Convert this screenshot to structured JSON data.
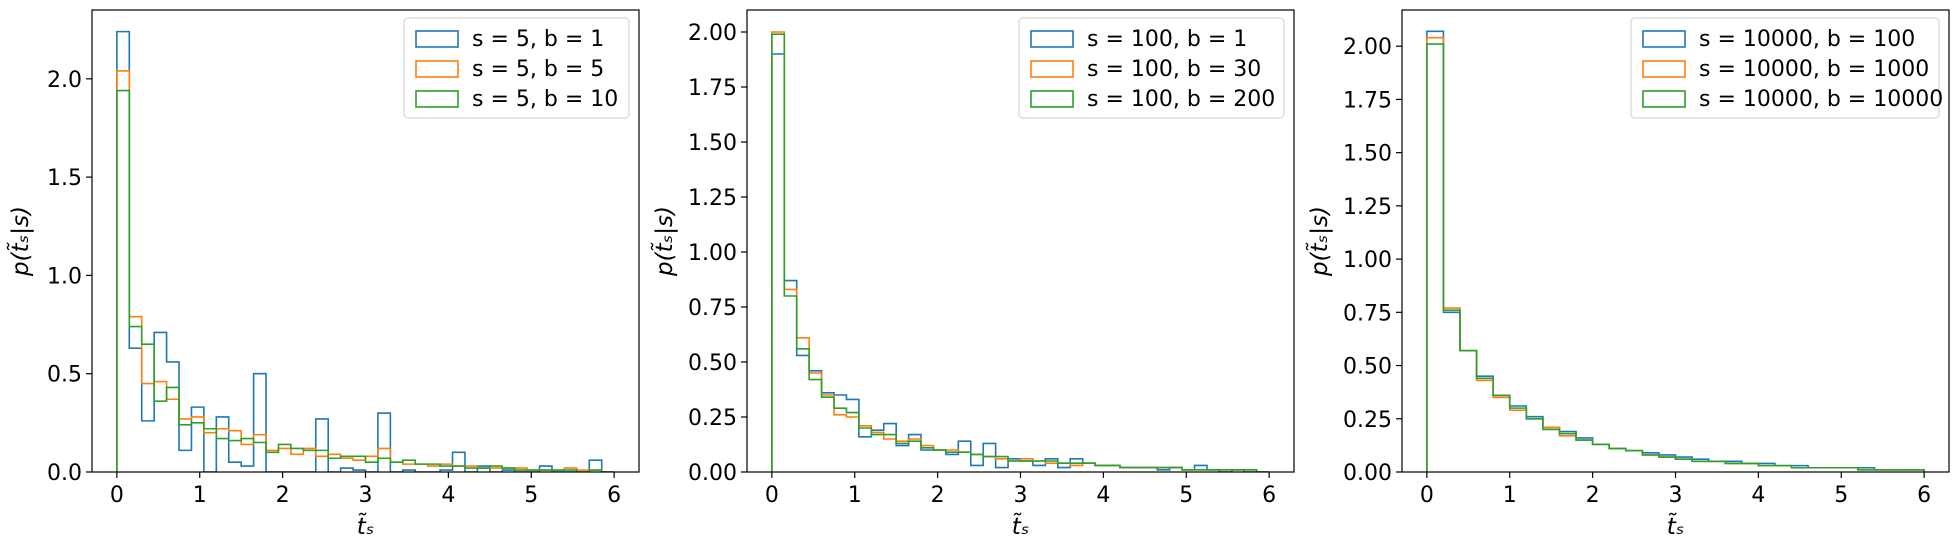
{
  "colors": {
    "series": [
      "#1f77b4",
      "#ff7f0e",
      "#2ca02c"
    ]
  },
  "chart_data": [
    {
      "type": "histogram-step",
      "xlabel": "t̃ₛ",
      "ylabel": "p(t̃ₛ|s)",
      "xlim": [
        -0.3,
        6.3
      ],
      "ylim": [
        0,
        2.35
      ],
      "xticks": [
        0,
        1,
        2,
        3,
        4,
        5,
        6
      ],
      "yticks": [
        0.0,
        0.5,
        1.0,
        1.5,
        2.0
      ],
      "ytick_labels": [
        "0.0",
        "0.5",
        "1.0",
        "1.5",
        "2.0"
      ],
      "bin_edges": [
        0,
        0.15,
        0.3,
        0.45,
        0.6,
        0.75,
        0.9,
        1.05,
        1.2,
        1.35,
        1.5,
        1.65,
        1.8,
        1.95,
        2.1,
        2.25,
        2.4,
        2.55,
        2.7,
        2.85,
        3.0,
        3.15,
        3.3,
        3.45,
        3.6,
        3.75,
        3.9,
        4.05,
        4.2,
        4.35,
        4.5,
        4.65,
        4.8,
        4.95,
        5.1,
        5.25,
        5.4,
        5.55,
        5.7,
        5.85,
        6.0
      ],
      "legend_position": "upper right",
      "series": [
        {
          "name": "s = 5, b = 1",
          "values": [
            2.24,
            0.63,
            0.26,
            0.71,
            0.56,
            0.11,
            0.33,
            0.0,
            0.28,
            0.05,
            0.03,
            0.5,
            0.0,
            0.0,
            0.0,
            0.0,
            0.27,
            0.0,
            0.02,
            0.01,
            0.0,
            0.3,
            0.0,
            0.01,
            0.0,
            0.0,
            0.01,
            0.1,
            0.0,
            0.03,
            0.0,
            0.01,
            0.0,
            0.0,
            0.03,
            0.0,
            0.0,
            0.0,
            0.06,
            0.0
          ]
        },
        {
          "name": "s = 5, b = 5",
          "values": [
            2.04,
            0.79,
            0.45,
            0.46,
            0.37,
            0.27,
            0.28,
            0.2,
            0.22,
            0.21,
            0.14,
            0.19,
            0.11,
            0.12,
            0.09,
            0.12,
            0.08,
            0.09,
            0.07,
            0.06,
            0.08,
            0.12,
            0.05,
            0.04,
            0.04,
            0.03,
            0.04,
            0.03,
            0.03,
            0.02,
            0.02,
            0.02,
            0.02,
            0.01,
            0.01,
            0.01,
            0.02,
            0.01,
            0.01,
            0.0
          ]
        },
        {
          "name": "s = 5, b = 10",
          "values": [
            1.94,
            0.74,
            0.65,
            0.36,
            0.43,
            0.24,
            0.25,
            0.22,
            0.17,
            0.16,
            0.17,
            0.15,
            0.1,
            0.14,
            0.12,
            0.11,
            0.11,
            0.07,
            0.08,
            0.08,
            0.05,
            0.07,
            0.05,
            0.06,
            0.04,
            0.04,
            0.03,
            0.03,
            0.02,
            0.02,
            0.03,
            0.02,
            0.01,
            0.01,
            0.01,
            0.01,
            0.01,
            0.0,
            0.01,
            0.0
          ]
        }
      ]
    },
    {
      "type": "histogram-step",
      "xlabel": "t̃ₛ",
      "ylabel": "p(t̃ₛ|s)",
      "xlim": [
        -0.3,
        6.3
      ],
      "ylim": [
        0,
        2.1
      ],
      "xticks": [
        0,
        1,
        2,
        3,
        4,
        5,
        6
      ],
      "yticks": [
        0.0,
        0.25,
        0.5,
        0.75,
        1.0,
        1.25,
        1.5,
        1.75,
        2.0
      ],
      "ytick_labels": [
        "0.00",
        "0.25",
        "0.50",
        "0.75",
        "1.00",
        "1.25",
        "1.50",
        "1.75",
        "2.00"
      ],
      "bin_edges": [
        0,
        0.15,
        0.3,
        0.45,
        0.6,
        0.75,
        0.9,
        1.05,
        1.2,
        1.35,
        1.5,
        1.65,
        1.8,
        1.95,
        2.1,
        2.25,
        2.4,
        2.55,
        2.7,
        2.85,
        3.0,
        3.15,
        3.3,
        3.45,
        3.6,
        3.75,
        3.9,
        4.05,
        4.2,
        4.35,
        4.5,
        4.65,
        4.8,
        4.95,
        5.1,
        5.25,
        5.4,
        5.55,
        5.7,
        5.85,
        6.0
      ],
      "legend_position": "upper right",
      "series": [
        {
          "name": "s = 100, b = 1",
          "values": [
            1.9,
            0.87,
            0.53,
            0.46,
            0.36,
            0.35,
            0.33,
            0.16,
            0.19,
            0.22,
            0.12,
            0.17,
            0.1,
            0.1,
            0.08,
            0.14,
            0.03,
            0.13,
            0.02,
            0.06,
            0.05,
            0.03,
            0.06,
            0.02,
            0.06,
            0.04,
            0.03,
            0.03,
            0.02,
            0.02,
            0.02,
            0.01,
            0.02,
            0.01,
            0.03,
            0.01,
            0.0,
            0.01,
            0.0,
            0.0
          ]
        },
        {
          "name": "s = 100, b = 30",
          "values": [
            2.0,
            0.83,
            0.61,
            0.45,
            0.35,
            0.26,
            0.25,
            0.21,
            0.18,
            0.15,
            0.14,
            0.15,
            0.12,
            0.1,
            0.1,
            0.09,
            0.08,
            0.07,
            0.06,
            0.05,
            0.06,
            0.05,
            0.04,
            0.04,
            0.03,
            0.04,
            0.03,
            0.03,
            0.02,
            0.02,
            0.02,
            0.02,
            0.02,
            0.01,
            0.01,
            0.01,
            0.01,
            0.01,
            0.01,
            0.0
          ]
        },
        {
          "name": "s = 100, b = 200",
          "values": [
            1.99,
            0.8,
            0.56,
            0.42,
            0.34,
            0.29,
            0.27,
            0.2,
            0.17,
            0.17,
            0.13,
            0.14,
            0.11,
            0.1,
            0.09,
            0.09,
            0.08,
            0.07,
            0.07,
            0.05,
            0.05,
            0.05,
            0.05,
            0.04,
            0.04,
            0.04,
            0.03,
            0.03,
            0.02,
            0.02,
            0.02,
            0.02,
            0.02,
            0.01,
            0.01,
            0.01,
            0.01,
            0.01,
            0.01,
            0.0
          ]
        }
      ]
    },
    {
      "type": "histogram-step",
      "xlabel": "t̃ₛ",
      "ylabel": "p(t̃ₛ|s)",
      "xlim": [
        -0.3,
        6.3
      ],
      "ylim": [
        0,
        2.17
      ],
      "xticks": [
        0,
        1,
        2,
        3,
        4,
        5,
        6
      ],
      "yticks": [
        0.0,
        0.25,
        0.5,
        0.75,
        1.0,
        1.25,
        1.5,
        1.75,
        2.0
      ],
      "ytick_labels": [
        "0.00",
        "0.25",
        "0.50",
        "0.75",
        "1.00",
        "1.25",
        "1.50",
        "1.75",
        "2.00"
      ],
      "bin_edges": [
        0,
        0.2,
        0.4,
        0.6,
        0.8,
        1.0,
        1.2,
        1.4,
        1.6,
        1.8,
        2.0,
        2.2,
        2.4,
        2.6,
        2.8,
        3.0,
        3.2,
        3.4,
        3.6,
        3.8,
        4.0,
        4.2,
        4.4,
        4.6,
        4.8,
        5.0,
        5.2,
        5.4,
        5.6,
        5.8,
        6.0
      ],
      "legend_position": "upper right",
      "series": [
        {
          "name": "s = 10000, b = 100",
          "values": [
            2.07,
            0.75,
            0.57,
            0.45,
            0.36,
            0.31,
            0.26,
            0.21,
            0.19,
            0.16,
            0.13,
            0.11,
            0.1,
            0.09,
            0.08,
            0.07,
            0.06,
            0.05,
            0.05,
            0.04,
            0.04,
            0.03,
            0.03,
            0.02,
            0.02,
            0.02,
            0.02,
            0.01,
            0.01,
            0.01
          ]
        },
        {
          "name": "s = 10000, b = 1000",
          "values": [
            2.04,
            0.77,
            0.57,
            0.43,
            0.35,
            0.29,
            0.25,
            0.21,
            0.17,
            0.15,
            0.13,
            0.11,
            0.1,
            0.08,
            0.07,
            0.06,
            0.05,
            0.05,
            0.04,
            0.04,
            0.03,
            0.03,
            0.02,
            0.02,
            0.02,
            0.02,
            0.01,
            0.01,
            0.01,
            0.01
          ]
        },
        {
          "name": "s = 10000, b = 10000",
          "values": [
            2.01,
            0.76,
            0.57,
            0.44,
            0.36,
            0.3,
            0.25,
            0.2,
            0.18,
            0.15,
            0.13,
            0.11,
            0.1,
            0.08,
            0.07,
            0.06,
            0.05,
            0.05,
            0.04,
            0.04,
            0.03,
            0.03,
            0.02,
            0.02,
            0.02,
            0.02,
            0.01,
            0.01,
            0.01,
            0.01
          ]
        }
      ]
    }
  ]
}
